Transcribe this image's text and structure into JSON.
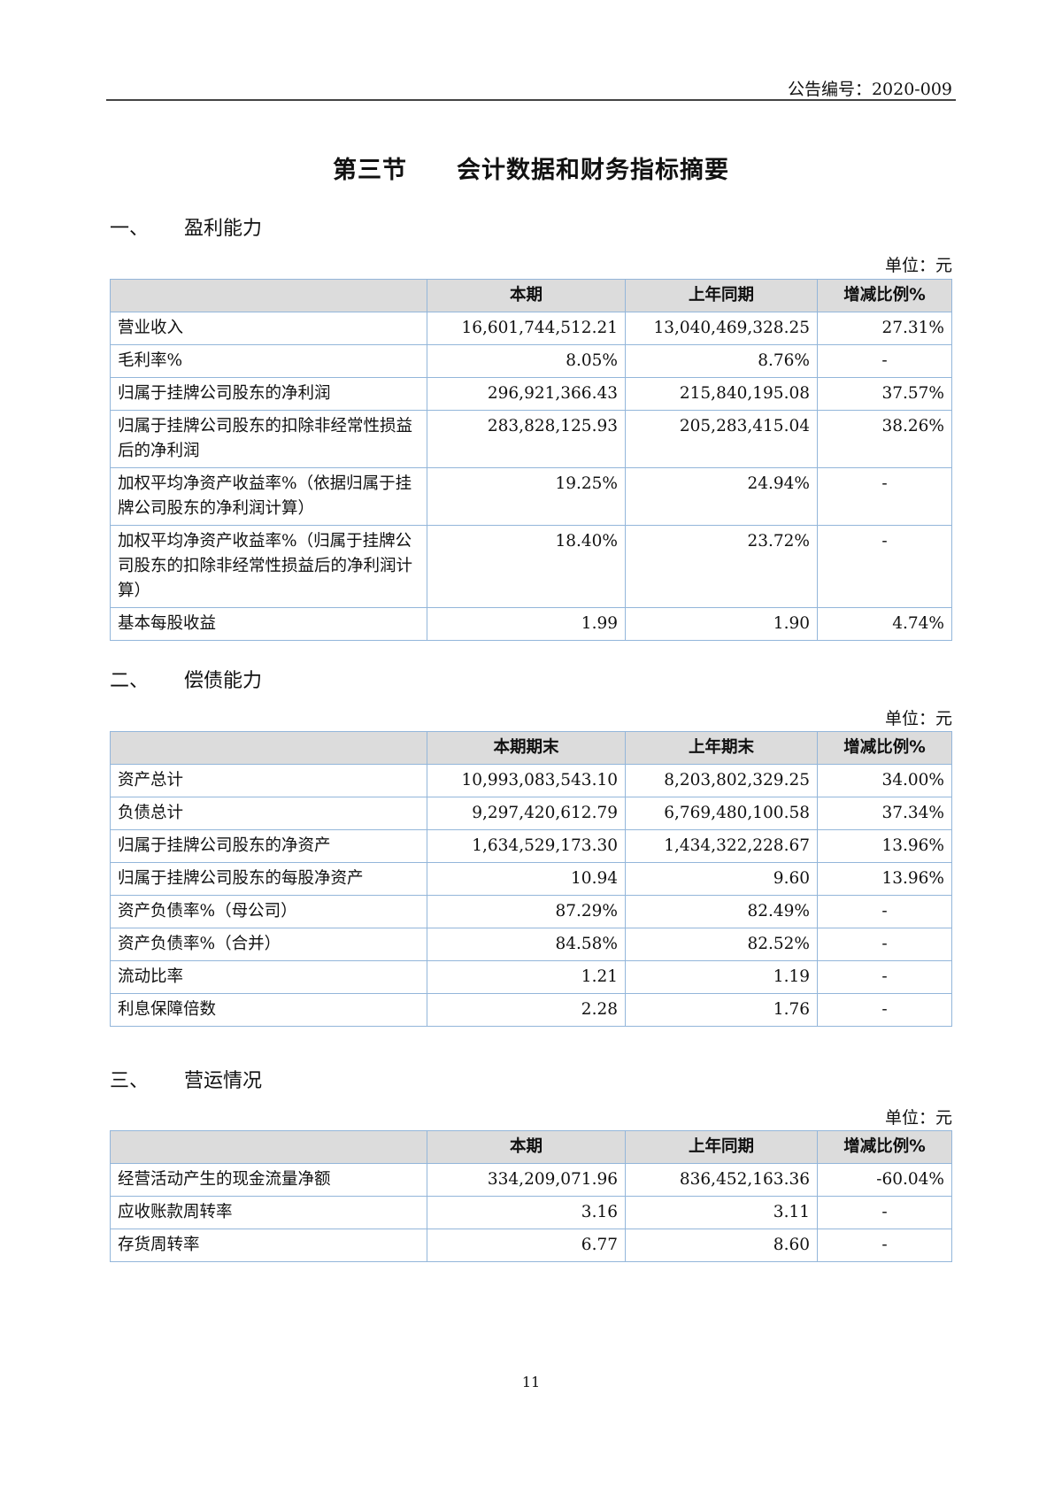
{
  "header": {
    "doc_number": "公告编号：2020-009"
  },
  "title": "第三节　　会计数据和财务指标摘要",
  "sections": [
    {
      "num": "一、",
      "title": "盈利能力",
      "unit": "单位：元",
      "columns": [
        "",
        "本期",
        "上年同期",
        "增减比例%"
      ],
      "rows": [
        [
          "营业收入",
          "16,601,744,512.21",
          "13,040,469,328.25",
          "27.31%"
        ],
        [
          "毛利率%",
          "8.05%",
          "8.76%",
          "-"
        ],
        [
          "归属于挂牌公司股东的净利润",
          "296,921,366.43",
          "215,840,195.08",
          "37.57%"
        ],
        [
          "归属于挂牌公司股东的扣除非经常性损益后的净利润",
          "283,828,125.93",
          "205,283,415.04",
          "38.26%"
        ],
        [
          "加权平均净资产收益率%（依据归属于挂牌公司股东的净利润计算）",
          "19.25%",
          "24.94%",
          "-"
        ],
        [
          "加权平均净资产收益率%（归属于挂牌公司股东的扣除非经常性损益后的净利润计算）",
          "18.40%",
          "23.72%",
          "-"
        ],
        [
          "基本每股收益",
          "1.99",
          "1.90",
          "4.74%"
        ]
      ]
    },
    {
      "num": "二、",
      "title": "偿债能力",
      "unit": "单位：元",
      "columns": [
        "",
        "本期期末",
        "上年期末",
        "增减比例%"
      ],
      "rows": [
        [
          "资产总计",
          "10,993,083,543.10",
          "8,203,802,329.25",
          "34.00%"
        ],
        [
          "负债总计",
          "9,297,420,612.79",
          "6,769,480,100.58",
          "37.34%"
        ],
        [
          "归属于挂牌公司股东的净资产",
          "1,634,529,173.30",
          "1,434,322,228.67",
          "13.96%"
        ],
        [
          "归属于挂牌公司股东的每股净资产",
          "10.94",
          "9.60",
          "13.96%"
        ],
        [
          "资产负债率%（母公司）",
          "87.29%",
          "82.49%",
          "-"
        ],
        [
          "资产负债率%（合并）",
          "84.58%",
          "82.52%",
          "-"
        ],
        [
          "流动比率",
          "1.21",
          "1.19",
          "-"
        ],
        [
          "利息保障倍数",
          "2.28",
          "1.76",
          "-"
        ]
      ]
    },
    {
      "num": "三、",
      "title": "营运情况",
      "unit": "单位：元",
      "columns": [
        "",
        "本期",
        "上年同期",
        "增减比例%"
      ],
      "rows": [
        [
          "经营活动产生的现金流量净额",
          "334,209,071.96",
          "836,452,163.36",
          "-60.04%"
        ],
        [
          "应收账款周转率",
          "3.16",
          "3.11",
          "-"
        ],
        [
          "存货周转率",
          "6.77",
          "8.60",
          "-"
        ]
      ]
    }
  ],
  "page_number": "11"
}
